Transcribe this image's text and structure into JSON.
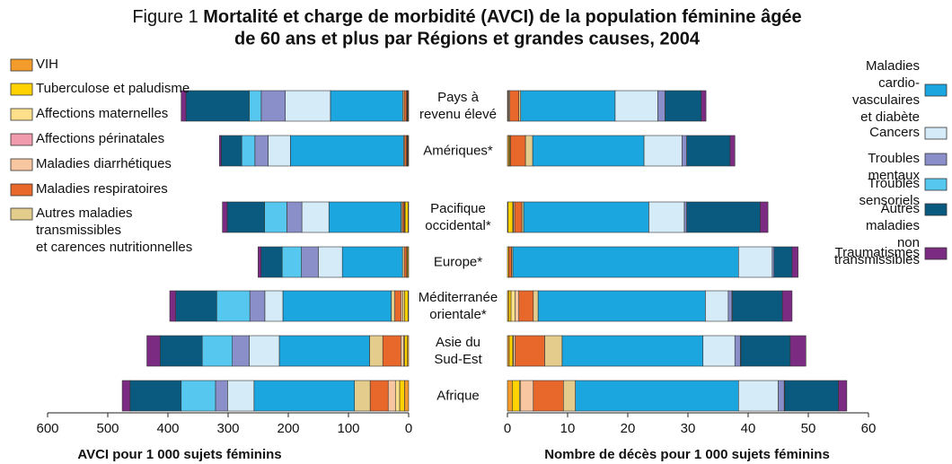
{
  "chart_data": [
    {
      "type": "bar",
      "orientation": "horizontal",
      "stacked": true,
      "figure_label": "Figure 1",
      "title": [
        "Mortalité et charge de morbidité (AVCI) de la population féminine âgée",
        "de 60 ans et plus par Régions et grandes causes, 2004"
      ],
      "xlabel": "AVCI pour 1 000 sujets féminins",
      "categories": [
        "Pays à\nrevenu élevé",
        "Amériques*",
        "Pacifique\noccidental*",
        "Europe*",
        "Méditerranée\norientale*",
        "Asie du\nSud-Est",
        "Afrique"
      ],
      "xlim": [
        600,
        0
      ],
      "xticks": [
        600,
        500,
        400,
        300,
        200,
        100,
        0
      ],
      "series": [
        {
          "name": "VIH",
          "color": "#f39c2b",
          "values": [
            1,
            1,
            1,
            0.5,
            1,
            2,
            7
          ]
        },
        {
          "name": "Tuberculose et paludisme",
          "color": "#ffd200",
          "values": [
            1,
            1,
            5,
            2,
            6,
            5,
            8
          ]
        },
        {
          "name": "Affections maternelles",
          "color": "#ffe08a",
          "values": [
            0.5,
            0.5,
            0.5,
            0.2,
            3,
            1,
            7
          ]
        },
        {
          "name": "Affections périnatales",
          "color": "#f19aae",
          "values": [
            0,
            0,
            0,
            0,
            0,
            0,
            0
          ]
        },
        {
          "name": "Maladies diarrhétiques",
          "color": "#f8c6a0",
          "values": [
            1,
            1,
            1,
            0.5,
            3,
            5,
            12
          ]
        },
        {
          "name": "Maladies respiratoires",
          "color": "#e8672a",
          "values": [
            4,
            3,
            3,
            4,
            10,
            30,
            30
          ]
        },
        {
          "name": "Autres maladies\ntransmissibles\net carences nutritionnelles",
          "color": "#e3cc8c",
          "values": [
            2.5,
            2,
            2,
            3,
            6,
            22,
            26
          ]
        },
        {
          "name": "Maladies cardio-vasculaires\net diabète",
          "color": "#1ca6e0",
          "values": [
            120,
            188,
            120,
            100,
            180,
            150,
            167
          ]
        },
        {
          "name": "Cancers",
          "color": "#d5ebf8",
          "values": [
            75,
            37,
            45,
            40,
            30,
            50,
            44
          ]
        },
        {
          "name": "Troubles mentaux",
          "color": "#8a8fc9",
          "values": [
            40,
            22,
            25,
            28,
            25,
            28,
            20
          ]
        },
        {
          "name": "Troubles sensoriels",
          "color": "#56c7ef",
          "values": [
            20,
            22,
            37,
            32,
            55,
            50,
            57
          ]
        },
        {
          "name": "Autres maladies\nnon transmissibles",
          "color": "#0a5a80",
          "values": [
            105,
            34,
            62,
            35,
            68,
            70,
            85
          ]
        },
        {
          "name": "Traumatismes",
          "color": "#7b2c82",
          "values": [
            8,
            3,
            8,
            5,
            10,
            22,
            13
          ]
        }
      ]
    },
    {
      "type": "bar",
      "orientation": "horizontal",
      "stacked": true,
      "xlabel": "Nombre de décès pour 1 000 sujets féminins",
      "xlim": [
        0,
        60
      ],
      "xticks": [
        0,
        10,
        20,
        30,
        40,
        50,
        60
      ],
      "series": [
        {
          "values": [
            0.1,
            0.2,
            0.1,
            0,
            0.2,
            0.3,
            0.8
          ]
        },
        {
          "values": [
            0.1,
            0.2,
            0.8,
            0.2,
            0.4,
            0.6,
            1.2
          ]
        },
        {
          "values": [
            0,
            0,
            0.1,
            0,
            0.7,
            0.1,
            0.2
          ]
        },
        {
          "values": [
            0,
            0,
            0,
            0,
            0,
            0,
            0
          ]
        },
        {
          "values": [
            0.2,
            0.1,
            0.2,
            0,
            0.6,
            0.3,
            2.1
          ]
        },
        {
          "values": [
            1.5,
            2.5,
            1.2,
            0.5,
            2.4,
            4.9,
            5
          ]
        },
        {
          "values": [
            0.3,
            1.2,
            0.3,
            0.2,
            0.8,
            2.9,
            2
          ]
        },
        {
          "values": [
            15.7,
            18.5,
            20.8,
            37.5,
            27.8,
            23.4,
            27.1
          ]
        },
        {
          "values": [
            7.1,
            6.3,
            5.9,
            5.6,
            3.8,
            5.3,
            6.6
          ]
        },
        {
          "values": [
            1.2,
            0.8,
            0.4,
            0.3,
            0.6,
            0.9,
            1
          ]
        },
        {
          "values": [
            0,
            0,
            0,
            0,
            0.1,
            0.1,
            0.1
          ]
        },
        {
          "values": [
            6,
            7.2,
            12.2,
            3,
            8.3,
            8.2,
            8.9
          ]
        },
        {
          "values": [
            0.8,
            0.8,
            1.3,
            1,
            1.6,
            2.6,
            1.4
          ]
        }
      ]
    }
  ]
}
